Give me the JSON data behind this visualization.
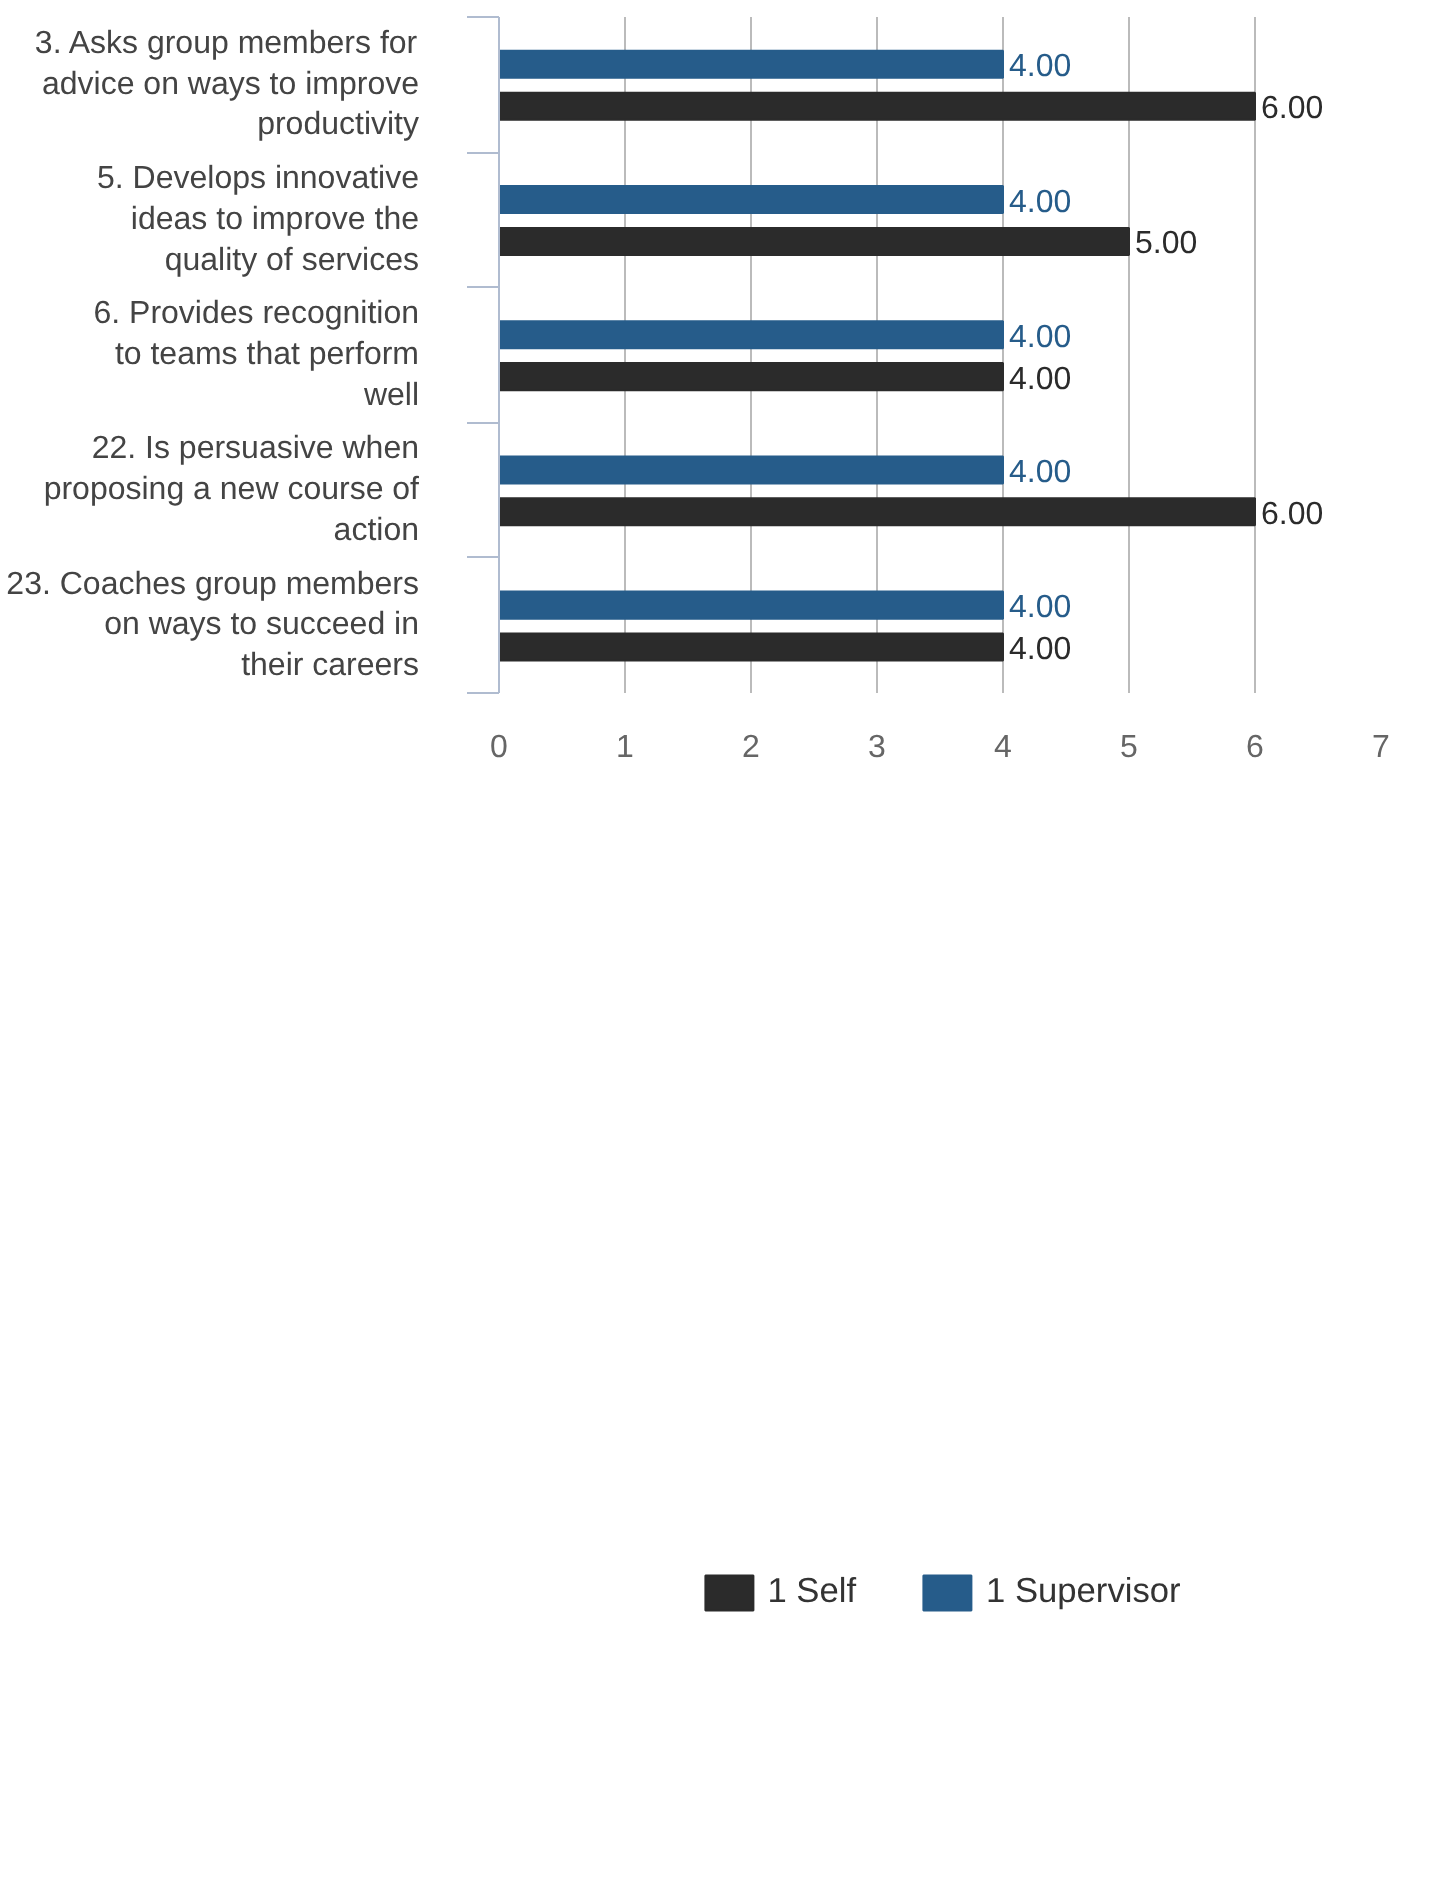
{
  "chart_data": {
    "type": "bar",
    "orientation": "horizontal",
    "categories": [
      "3. Asks group members for advice on ways to improve productivity",
      "5. Develops innovative ideas to improve the quality of services",
      "6. Provides recognition to teams that perform well",
      "22. Is persuasive when proposing a new course of action",
      "23. Coaches group members on ways to succeed in their careers"
    ],
    "series": [
      {
        "name": "1 Self",
        "color": "#2b2b2b",
        "values": [
          6,
          5,
          4,
          6,
          4
        ],
        "value_labels": [
          "6.00",
          "5.00",
          "4.00",
          "6.00",
          "4.00"
        ]
      },
      {
        "name": "1 Supervisor",
        "color": "#265c8a",
        "values": [
          4,
          4,
          4,
          4,
          4
        ],
        "value_labels": [
          "4.00",
          "4.00",
          "4.00",
          "4.00",
          "4.00"
        ]
      }
    ],
    "xlim": [
      0,
      7
    ],
    "xticks": [
      0,
      1,
      2,
      3,
      4,
      5,
      6,
      7
    ],
    "grid": "x",
    "legend": "bottom"
  }
}
